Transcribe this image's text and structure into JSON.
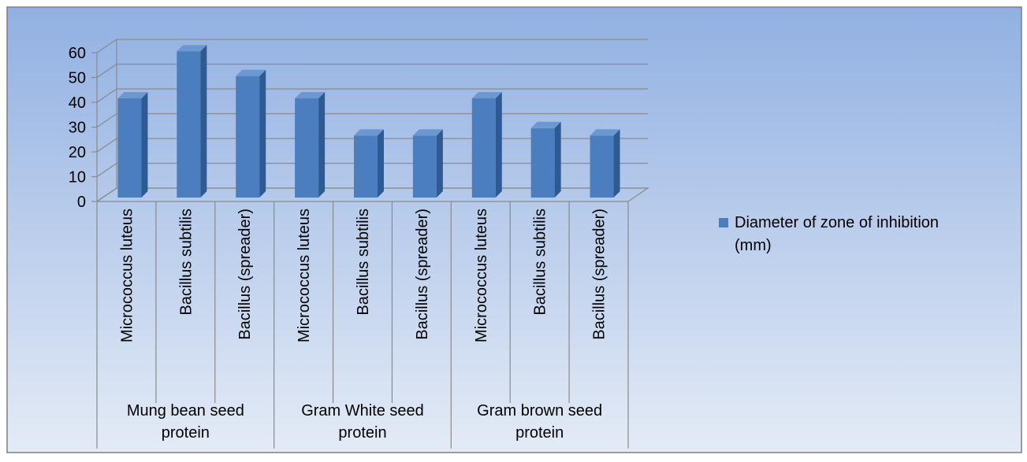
{
  "chart_data": {
    "type": "bar",
    "style": "3d-clustered-column",
    "groups": [
      {
        "label": "Mung bean seed protein",
        "label_lines": [
          "Mung bean seed",
          "protein"
        ]
      },
      {
        "label": "Gram White  seed protein",
        "label_lines": [
          "Gram White  seed",
          "protein"
        ]
      },
      {
        "label": "Gram brown seed protein",
        "label_lines": [
          "Gram brown seed",
          "protein"
        ]
      }
    ],
    "categories": [
      "Micrococcus luteus",
      "Bacillus subtilis",
      "Bacillus (spreader)",
      "Micrococcus luteus",
      "Bacillus subtilis",
      "Bacillus (spreader)",
      "Micrococcus luteus",
      "Bacillus subtilis",
      "Bacillus (spreader)"
    ],
    "series": [
      {
        "name": "Diameter of zone of inhibition (mm)",
        "legend_lines": [
          "Diameter of zone of inhibition",
          "(mm)"
        ],
        "values": [
          40,
          59,
          49,
          40,
          25,
          25,
          40,
          28,
          25
        ],
        "color": "#4f81bd"
      }
    ],
    "yticks": [
      0,
      10,
      20,
      30,
      40,
      50,
      60
    ],
    "ylim": [
      0,
      60
    ],
    "grid": true,
    "legend_position": "right",
    "title": "",
    "xlabel": "",
    "ylabel": ""
  },
  "colors": {
    "background_top": "#91b0e2",
    "background_bottom": "#e4ebf6",
    "bar_front": "#4a7ebf",
    "bar_side": "#2d5a93",
    "bar_top": "#6c98d2",
    "gridline": "#8a8a8a"
  }
}
